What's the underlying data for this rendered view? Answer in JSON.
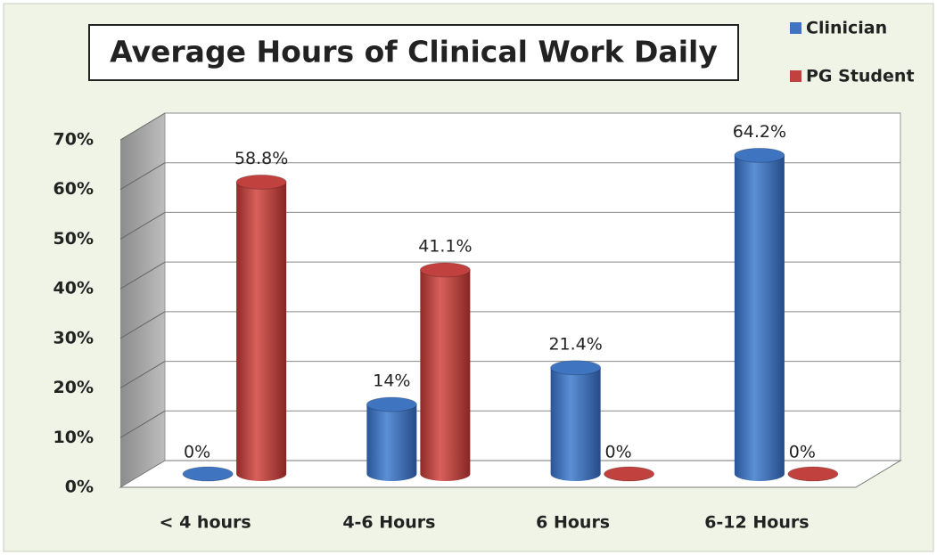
{
  "chart_data": {
    "type": "bar",
    "title": "Average Hours of Clinical Work Daily",
    "categories": [
      "< 4 hours",
      "4-6 Hours",
      "6 Hours",
      "6-12 Hours"
    ],
    "series": [
      {
        "name": "Clinician",
        "color": "#3f74c0",
        "values": [
          0,
          14,
          21.4,
          64.2
        ],
        "value_labels": [
          "0%",
          "14%",
          "21.4%",
          "64.2%"
        ]
      },
      {
        "name": "PG Student",
        "color": "#c0413d",
        "values": [
          58.8,
          41.1,
          0,
          0
        ],
        "value_labels": [
          "58.8%",
          "41.1%",
          "0%",
          "0%"
        ]
      }
    ],
    "ylim": [
      0,
      70
    ],
    "yticks": [
      {
        "value": 0,
        "label": "0%"
      },
      {
        "value": 10,
        "label": "10%"
      },
      {
        "value": 20,
        "label": "20%"
      },
      {
        "value": 30,
        "label": "30%"
      },
      {
        "value": 40,
        "label": "40%"
      },
      {
        "value": 50,
        "label": "50%"
      },
      {
        "value": 60,
        "label": "60%"
      },
      {
        "value": 70,
        "label": "70%"
      }
    ],
    "grid": true,
    "legend": "top-right"
  }
}
